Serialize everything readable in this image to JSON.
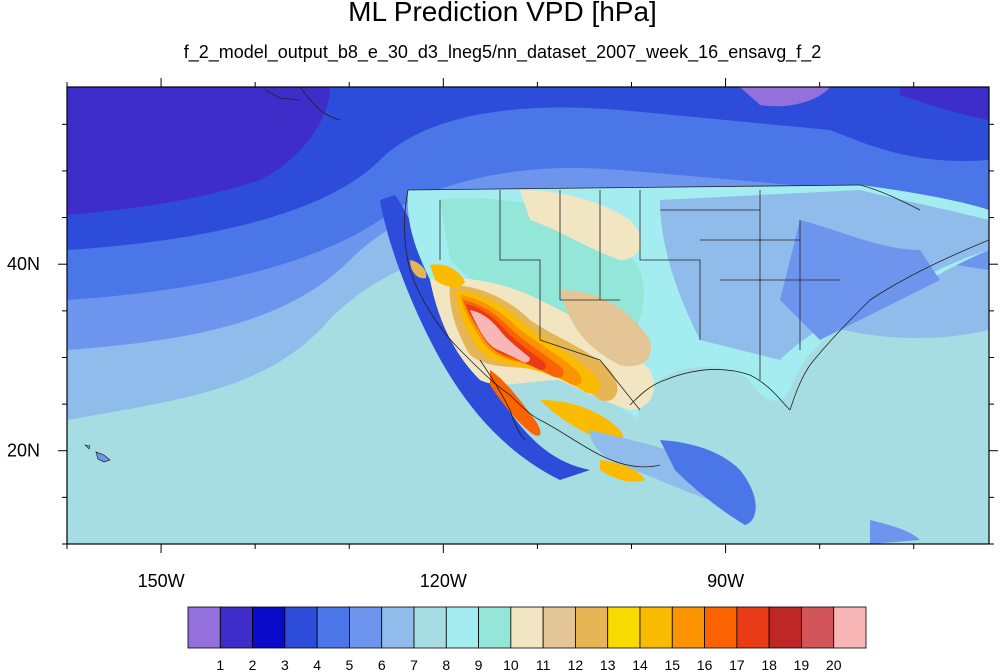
{
  "title": "ML Prediction VPD [hPa]",
  "subtitle": "f_2_model_output_b8_e_30_d3_lneg5/nn_dataset_2007_week_16_ensavg_f_2",
  "map": {
    "lon_range": [
      -160,
      -62
    ],
    "lat_range": [
      10,
      59
    ],
    "x_ticks": [
      {
        "lon": -150,
        "label": "150W"
      },
      {
        "lon": -120,
        "label": "120W"
      },
      {
        "lon": -90,
        "label": "90W"
      }
    ],
    "y_ticks": [
      {
        "lat": 40,
        "label": "40N"
      },
      {
        "lat": 20,
        "label": "20N"
      }
    ]
  },
  "colorbar": {
    "colors": [
      "#9370db",
      "#3f2dc9",
      "#0a0acb",
      "#2c4cd9",
      "#4b76e8",
      "#6e95ee",
      "#8fbceb",
      "#a6dde2",
      "#a3edf0",
      "#93e6d8",
      "#f2e6c2",
      "#e3c596",
      "#e6b654",
      "#f8dc00",
      "#fbbb00",
      "#fb9400",
      "#fa6300",
      "#e83b16",
      "#bf2726",
      "#d2555a",
      "#f8b6b6"
    ],
    "labels": [
      "1",
      "2",
      "3",
      "4",
      "5",
      "6",
      "7",
      "8",
      "9",
      "10",
      "11",
      "12",
      "13",
      "14",
      "15",
      "16",
      "17",
      "18",
      "19",
      "20"
    ]
  }
}
